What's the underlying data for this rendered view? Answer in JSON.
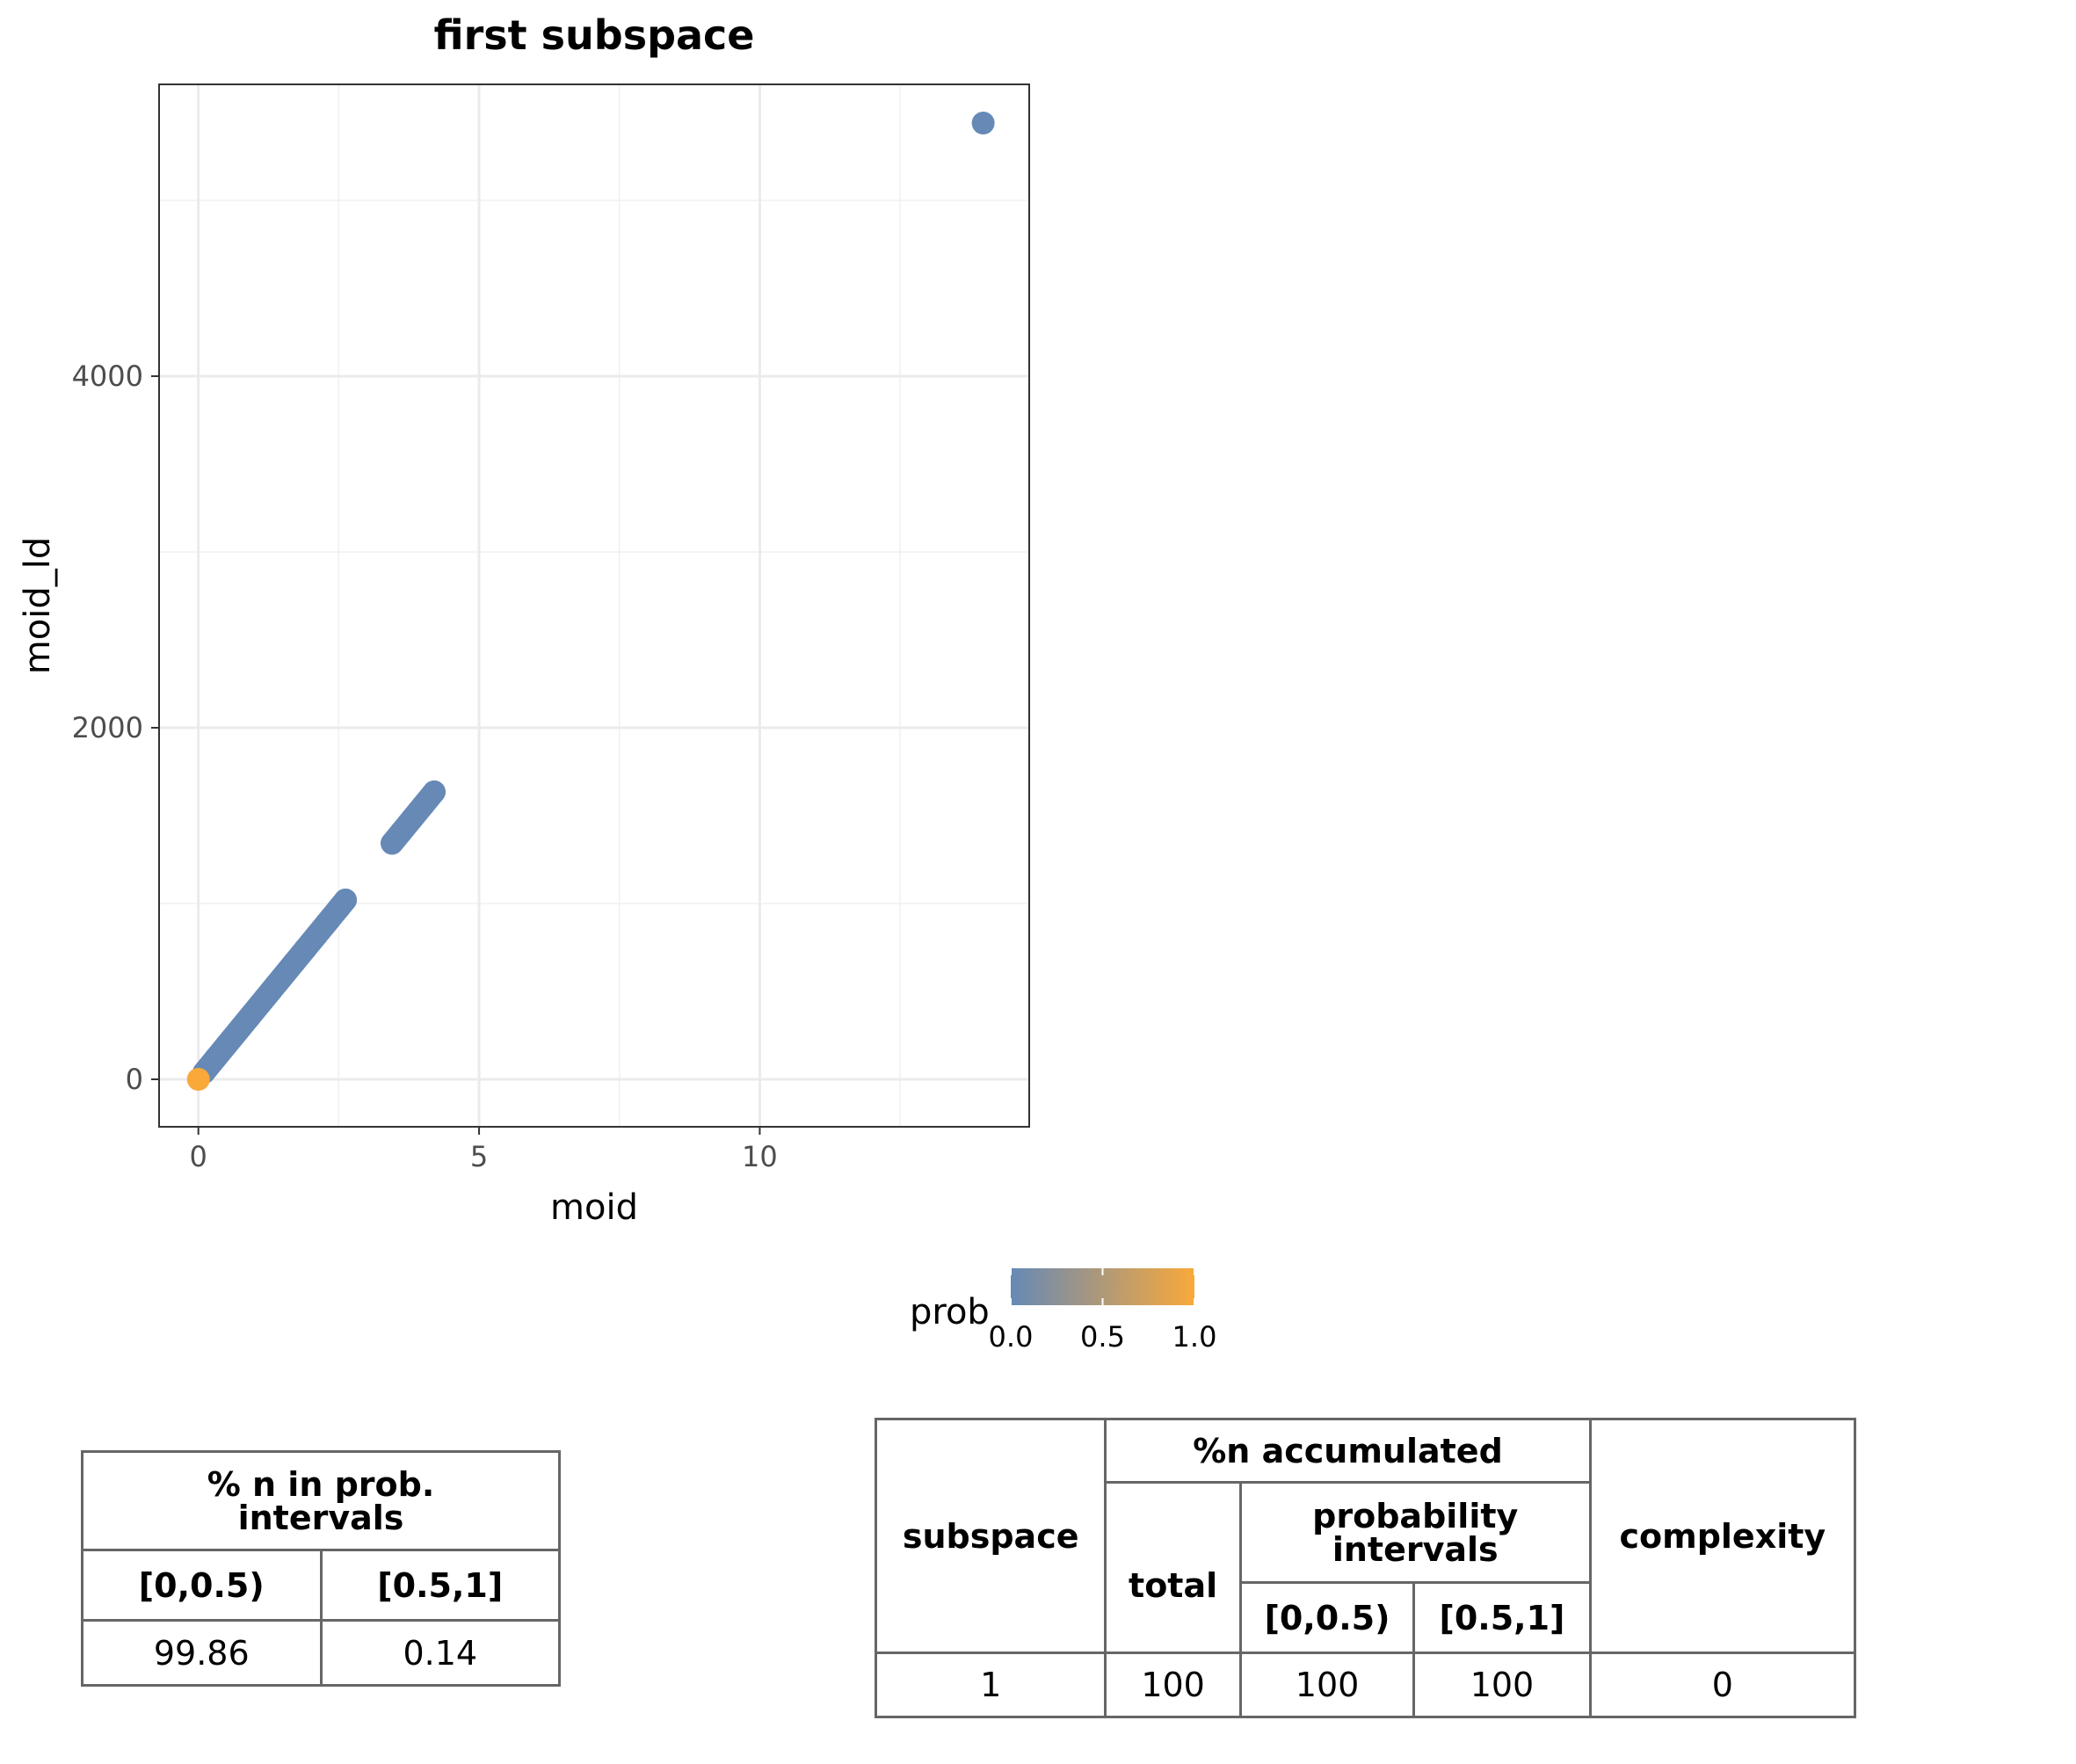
{
  "chart_data": {
    "type": "scatter",
    "title": "first subspace",
    "xlabel": "moid",
    "ylabel": "moid_ld",
    "xlim": [
      -0.7,
      14.8
    ],
    "ylim": [
      -270,
      5660
    ],
    "x_ticks": [
      0,
      5,
      10
    ],
    "x_tick_labels": [
      "0",
      "5",
      "10"
    ],
    "y_ticks": [
      0,
      2000,
      4000
    ],
    "y_tick_labels": [
      "0",
      "2000",
      "4000"
    ],
    "grid": true,
    "series": [
      {
        "label_color": "prob",
        "points": [
          {
            "x": 0.0,
            "y": 0,
            "prob": 1.0
          },
          {
            "x": 0.1,
            "y": 39,
            "prob": 0.0
          },
          {
            "x": 0.3,
            "y": 117,
            "prob": 0.0
          },
          {
            "x": 0.5,
            "y": 195,
            "prob": 0.0
          },
          {
            "x": 0.7,
            "y": 272,
            "prob": 0.0
          },
          {
            "x": 0.9,
            "y": 350,
            "prob": 0.0
          },
          {
            "x": 1.1,
            "y": 428,
            "prob": 0.0
          },
          {
            "x": 1.3,
            "y": 506,
            "prob": 0.0
          },
          {
            "x": 1.5,
            "y": 584,
            "prob": 0.0
          },
          {
            "x": 1.7,
            "y": 662,
            "prob": 0.0
          },
          {
            "x": 1.9,
            "y": 740,
            "prob": 0.0
          },
          {
            "x": 2.1,
            "y": 817,
            "prob": 0.0
          },
          {
            "x": 2.3,
            "y": 895,
            "prob": 0.0
          },
          {
            "x": 2.5,
            "y": 973,
            "prob": 0.0
          },
          {
            "x": 2.62,
            "y": 1020,
            "prob": 0.0
          },
          {
            "x": 3.45,
            "y": 1343,
            "prob": 0.0
          },
          {
            "x": 3.6,
            "y": 1401,
            "prob": 0.0
          },
          {
            "x": 3.8,
            "y": 1479,
            "prob": 0.0
          },
          {
            "x": 4.0,
            "y": 1557,
            "prob": 0.0
          },
          {
            "x": 4.2,
            "y": 1635,
            "prob": 0.0
          },
          {
            "x": 13.98,
            "y": 5440,
            "prob": 0.0
          }
        ],
        "segments": [
          {
            "from": [
              0.1,
              39
            ],
            "to": [
              2.62,
              1020
            ],
            "prob": 0.0
          },
          {
            "from": [
              3.45,
              1343
            ],
            "to": [
              4.2,
              1635
            ],
            "prob": 0.0
          }
        ]
      }
    ],
    "legend": {
      "title": "prob",
      "position": "bottom",
      "ticks": [
        "0.0",
        "0.5",
        "1.0"
      ],
      "low_color": "#6689b6",
      "high_color": "#f9a93a"
    },
    "low_color": "#6689b6",
    "high_color": "#f9a93a"
  },
  "table_left": {
    "header_line1": "% n in prob.",
    "header_line2": "intervals",
    "col1": "[0,0.5)",
    "col2": "[0.5,1]",
    "val1": "99.86",
    "val2": "0.14"
  },
  "table_right": {
    "subspace_header": "subspace",
    "accum_header": "%n accumulated",
    "total_header": "total",
    "prob_header_line1": "probability",
    "prob_header_line2": "intervals",
    "int1_header": "[0,0.5)",
    "int2_header": "[0.5,1]",
    "complexity_header": "complexity",
    "row": {
      "subspace": "1",
      "total": "100",
      "int1": "100",
      "int2": "100",
      "complexity": "0"
    }
  }
}
